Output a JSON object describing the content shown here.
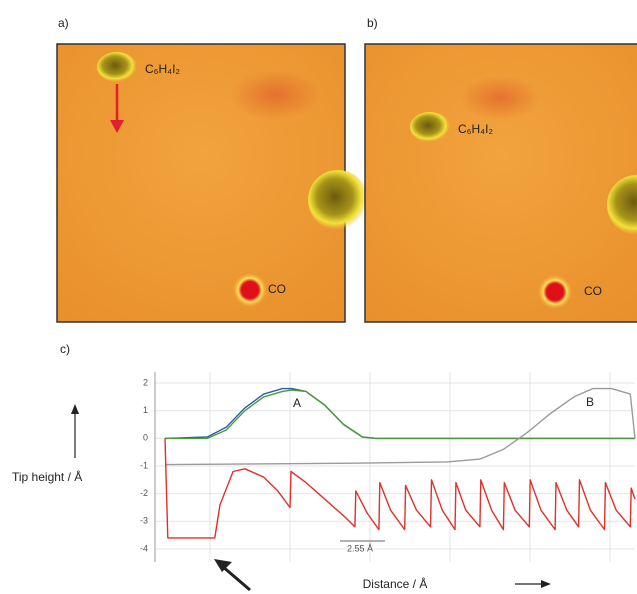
{
  "panels": [
    {
      "label": "a)",
      "molecule_label": "C₆H₄I₂",
      "co_label": "CO"
    },
    {
      "label": "b)",
      "molecule_label": "C₆H₄I₂",
      "co_label": "CO"
    }
  ],
  "chart_label": "c)",
  "chart_data": {
    "type": "line",
    "y_label": "Tip height / Å",
    "x_label": "Distance / Å",
    "annotations": [
      "A",
      "B",
      "2.55 Å"
    ],
    "xlim": [
      0,
      100
    ],
    "ylim": [
      -4.4,
      2.4
    ],
    "yticks": [
      2,
      1,
      0,
      -1,
      -2,
      -3,
      -4
    ],
    "grid": true,
    "series": [
      {
        "color": "#2b5ea8",
        "x": [
          0,
          9,
          13,
          17,
          21,
          25,
          27,
          30,
          34,
          38,
          42,
          45,
          100
        ],
        "values": [
          0,
          0.05,
          0.4,
          1.1,
          1.6,
          1.8,
          1.8,
          1.7,
          1.2,
          0.5,
          0.05,
          0,
          0
        ]
      },
      {
        "color": "#4c9a3c",
        "x": [
          0,
          9,
          13,
          17,
          21,
          25,
          27,
          30,
          34,
          38,
          42,
          45,
          100
        ],
        "values": [
          0,
          0,
          0.3,
          1.0,
          1.5,
          1.7,
          1.75,
          1.7,
          1.2,
          0.5,
          0.05,
          0,
          0
        ]
      },
      {
        "color": "#9a9a9a",
        "x": [
          0,
          40,
          60,
          67,
          72,
          77,
          82,
          87,
          91,
          95,
          99,
          100
        ],
        "values": [
          -0.95,
          -0.9,
          -0.85,
          -0.75,
          -0.4,
          0.2,
          0.9,
          1.5,
          1.8,
          1.8,
          1.6,
          0
        ]
      },
      {
        "color": "#e0302a",
        "x": [
          0,
          0.6,
          10.6,
          11.7,
          14.5,
          17,
          21,
          24,
          26.6,
          26.8,
          30,
          34,
          38,
          40.4,
          40.6,
          43,
          45.5,
          45.7,
          48,
          51,
          51.2,
          53.5,
          56.5,
          56.7,
          59,
          61.7,
          61.9,
          64,
          67,
          67.2,
          69.5,
          72,
          72.2,
          74.5,
          77.5,
          77.7,
          80,
          83,
          83.2,
          85.5,
          88,
          88.2,
          90.5,
          93.5,
          93.7,
          96,
          99,
          99.2,
          100
        ],
        "values": [
          0,
          -3.6,
          -3.6,
          -2.4,
          -1.2,
          -1.1,
          -1.4,
          -1.9,
          -2.5,
          -1.2,
          -1.6,
          -2.2,
          -2.8,
          -3.2,
          -1.9,
          -2.7,
          -3.3,
          -1.6,
          -2.6,
          -3.3,
          -1.7,
          -2.6,
          -3.2,
          -1.5,
          -2.6,
          -3.3,
          -1.6,
          -2.6,
          -3.2,
          -1.5,
          -2.6,
          -3.3,
          -1.6,
          -2.6,
          -3.2,
          -1.5,
          -2.6,
          -3.3,
          -1.6,
          -2.6,
          -3.2,
          -1.5,
          -2.6,
          -3.3,
          -1.6,
          -2.6,
          -3.2,
          -1.8,
          -2.2
        ]
      }
    ]
  }
}
